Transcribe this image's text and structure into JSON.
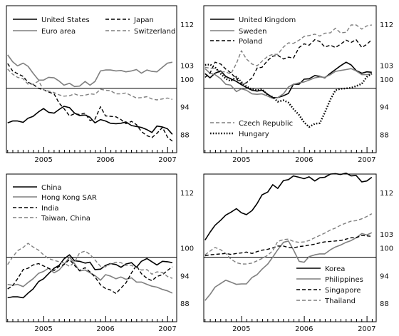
{
  "chart_data": [
    {
      "type": "line",
      "panel": "top-left",
      "title": "",
      "xlabel": "",
      "ylabel": "",
      "x_ticks": [
        "2005",
        "2006",
        "2007"
      ],
      "y_ticks": [
        88,
        94,
        100,
        103,
        112
      ],
      "ylim": [
        84,
        116
      ],
      "xlim": [
        2004.4,
        2007.15
      ],
      "reference_line": 98,
      "x": [
        2004.42,
        2004.5,
        2004.58,
        2004.67,
        2004.75,
        2004.83,
        2004.92,
        2005.0,
        2005.08,
        2005.17,
        2005.25,
        2005.33,
        2005.42,
        2005.5,
        2005.58,
        2005.67,
        2005.75,
        2005.83,
        2005.92,
        2006.0,
        2006.08,
        2006.17,
        2006.25,
        2006.33,
        2006.42,
        2006.5,
        2006.58,
        2006.67,
        2006.75,
        2006.83,
        2006.92,
        2007.0,
        2007.08
      ],
      "series": [
        {
          "name": "United States",
          "style": "solid",
          "color": "#000000",
          "width": 1.6,
          "values": [
            90.5,
            90.9,
            90.9,
            90.6,
            91.5,
            91.9,
            92.9,
            93.6,
            92.8,
            92.6,
            93.4,
            94.1,
            93.8,
            92.6,
            92.1,
            92.2,
            91.7,
            90.5,
            91.2,
            90.9,
            90.4,
            90.3,
            90.4,
            90.7,
            89.9,
            89.7,
            89.5,
            89.0,
            88.4,
            89.8,
            89.6,
            89.2,
            88.0
          ]
        },
        {
          "name": "Japan",
          "style": "dash",
          "color": "#000000",
          "width": 1.4,
          "values": [
            103.4,
            101.8,
            101.2,
            100.6,
            99.3,
            98.9,
            98.0,
            97.7,
            97.2,
            96.8,
            94.8,
            93.6,
            92.0,
            92.5,
            92.3,
            92.6,
            91.0,
            91.3,
            94.0,
            92.0,
            91.9,
            91.8,
            91.2,
            90.3,
            90.8,
            90.1,
            88.6,
            87.7,
            87.3,
            88.2,
            89.5,
            87.4,
            86.5
          ]
        },
        {
          "name": "Euro area",
          "style": "solid",
          "color": "#7f7f7f",
          "width": 1.6,
          "values": [
            105.3,
            103.8,
            102.9,
            103.5,
            102.8,
            101.3,
            99.8,
            99.8,
            100.4,
            100.3,
            99.6,
            98.7,
            99.1,
            98.4,
            98.5,
            99.5,
            98.7,
            99.5,
            101.8,
            102.0,
            102.0,
            101.8,
            101.9,
            101.6,
            101.8,
            102.1,
            101.3,
            102.0,
            101.7,
            101.6,
            102.6,
            103.5,
            103.7
          ]
        },
        {
          "name": "Switzerland",
          "style": "dash",
          "color": "#7f7f7f",
          "width": 1.4,
          "values": [
            102.2,
            101.1,
            100.4,
            100.1,
            98.9,
            98.9,
            99.6,
            97.7,
            97.4,
            97.1,
            96.6,
            96.3,
            96.4,
            96.8,
            96.4,
            96.5,
            96.8,
            96.7,
            97.8,
            97.6,
            97.5,
            96.8,
            96.8,
            97.0,
            96.4,
            95.9,
            96.0,
            96.2,
            95.7,
            95.5,
            95.7,
            95.9,
            95.6
          ]
        }
      ]
    },
    {
      "type": "line",
      "panel": "top-right",
      "title": "",
      "xlabel": "",
      "ylabel": "",
      "x_ticks": [
        "2005",
        "2006",
        "2007"
      ],
      "y_ticks": [
        88,
        94,
        100,
        103,
        112
      ],
      "ylim": [
        84,
        116
      ],
      "xlim": [
        2004.4,
        2007.15
      ],
      "reference_line": 98,
      "x": [
        2004.42,
        2004.5,
        2004.58,
        2004.67,
        2004.75,
        2004.83,
        2004.92,
        2005.0,
        2005.08,
        2005.17,
        2005.25,
        2005.33,
        2005.42,
        2005.5,
        2005.58,
        2005.67,
        2005.75,
        2005.83,
        2005.92,
        2006.0,
        2006.08,
        2006.17,
        2006.25,
        2006.33,
        2006.42,
        2006.5,
        2006.58,
        2006.67,
        2006.75,
        2006.83,
        2006.92,
        2007.0,
        2007.08
      ],
      "series": [
        {
          "name": "United Kingdom",
          "style": "solid",
          "color": "#000000",
          "width": 1.6,
          "values": [
            101.2,
            100.3,
            101.3,
            101.8,
            100.6,
            100.1,
            99.5,
            98.8,
            98.2,
            97.6,
            97.4,
            97.6,
            96.7,
            96.0,
            96.0,
            96.4,
            96.9,
            98.9,
            98.9,
            100.0,
            100.1,
            100.8,
            100.6,
            100.3,
            101.3,
            102.1,
            102.9,
            103.7,
            103.1,
            101.9,
            101.3,
            101.6,
            101.5
          ]
        },
        {
          "name": "Sweden",
          "style": "solid",
          "color": "#7f7f7f",
          "width": 1.6,
          "values": [
            102.3,
            101.3,
            101.0,
            100.1,
            98.9,
            98.7,
            97.3,
            97.9,
            97.6,
            96.8,
            96.7,
            96.8,
            96.3,
            95.8,
            96.0,
            96.8,
            98.3,
            98.9,
            99.2,
            99.4,
            99.8,
            100.3,
            100.5,
            100.4,
            101.0,
            101.7,
            101.9,
            102.1,
            102.3,
            101.8,
            101.0,
            101.0,
            101.2
          ]
        },
        {
          "name": "Poland",
          "style": "dash",
          "color": "#000000",
          "width": 1.4,
          "values": [
            100.4,
            101.3,
            103.7,
            103.3,
            102.2,
            101.4,
            100.1,
            98.9,
            99.2,
            100.3,
            102.4,
            102.6,
            104.1,
            105.0,
            105.2,
            104.4,
            104.8,
            104.6,
            106.9,
            107.7,
            107.4,
            108.6,
            108.2,
            107.0,
            107.4,
            106.9,
            107.6,
            108.5,
            108.0,
            108.6,
            106.9,
            107.6,
            108.6
          ]
        },
        {
          "name": "Czech Republic",
          "style": "dash",
          "color": "#7f7f7f",
          "width": 1.4,
          "values": [
            102.6,
            102.4,
            102.3,
            101.6,
            101.6,
            101.1,
            103.4,
            106.2,
            104.4,
            103.3,
            102.9,
            103.9,
            105.0,
            105.4,
            105.4,
            107.0,
            107.9,
            107.8,
            108.5,
            109.3,
            109.5,
            109.8,
            109.4,
            110.0,
            110.1,
            111.1,
            110.1,
            110.2,
            111.8,
            111.8,
            110.9,
            111.6,
            111.8
          ]
        },
        {
          "name": "Hungary",
          "style": "dot",
          "color": "#000000",
          "width": 2.4,
          "values": [
            103.1,
            103.2,
            102.6,
            101.2,
            100.1,
            99.6,
            100.5,
            99.4,
            98.4,
            97.8,
            97.6,
            97.8,
            96.6,
            96.1,
            95.1,
            95.4,
            94.9,
            93.5,
            92.2,
            90.6,
            89.6,
            90.3,
            90.4,
            92.7,
            95.6,
            97.6,
            97.9,
            98.0,
            98.1,
            98.5,
            99.0,
            100.5,
            101.2
          ]
        }
      ]
    },
    {
      "type": "line",
      "panel": "bottom-left",
      "title": "",
      "xlabel": "",
      "ylabel": "",
      "x_ticks": [
        "2005",
        "2006",
        "2007"
      ],
      "y_ticks": [
        88,
        94,
        100,
        112
      ],
      "ylim": [
        84,
        116
      ],
      "xlim": [
        2004.4,
        2007.15
      ],
      "reference_line": 98,
      "x": [
        2004.42,
        2004.5,
        2004.58,
        2004.67,
        2004.75,
        2004.83,
        2004.92,
        2005.0,
        2005.08,
        2005.17,
        2005.25,
        2005.33,
        2005.42,
        2005.5,
        2005.58,
        2005.67,
        2005.75,
        2005.83,
        2005.92,
        2006.0,
        2006.08,
        2006.17,
        2006.25,
        2006.33,
        2006.42,
        2006.5,
        2006.58,
        2006.67,
        2006.75,
        2006.83,
        2006.92,
        2007.0,
        2007.08
      ],
      "series": [
        {
          "name": "China",
          "style": "solid",
          "color": "#000000",
          "width": 1.6,
          "values": [
            89.2,
            89.4,
            89.4,
            89.2,
            90.2,
            91.1,
            92.7,
            93.3,
            94.4,
            95.6,
            96.2,
            97.6,
            98.5,
            97.2,
            97.1,
            96.7,
            96.9,
            95.3,
            95.4,
            96.2,
            96.6,
            96.4,
            95.8,
            96.5,
            96.8,
            95.8,
            97.1,
            97.7,
            97.0,
            96.3,
            97.1,
            97.0,
            96.8
          ]
        },
        {
          "name": "Hong Kong SAR",
          "style": "solid",
          "color": "#7f7f7f",
          "width": 1.6,
          "values": [
            92.1,
            91.9,
            92.1,
            91.6,
            92.5,
            93.3,
            94.5,
            94.9,
            95.6,
            94.6,
            95.2,
            96.4,
            98.0,
            96.6,
            95.0,
            95.2,
            94.6,
            94.0,
            93.0,
            94.2,
            93.9,
            93.3,
            93.7,
            93.2,
            93.5,
            92.6,
            92.6,
            92.1,
            91.7,
            91.5,
            91.0,
            90.7,
            90.2
          ]
        },
        {
          "name": "India",
          "style": "dash",
          "color": "#000000",
          "width": 1.4,
          "values": [
            91.1,
            91.8,
            93.3,
            95.3,
            95.6,
            96.3,
            96.6,
            96.1,
            95.6,
            95.1,
            96.0,
            96.4,
            97.5,
            96.2,
            95.1,
            95.7,
            94.8,
            93.7,
            92.0,
            91.2,
            90.9,
            90.1,
            91.3,
            92.4,
            94.6,
            96.2,
            94.4,
            93.4,
            92.9,
            93.8,
            94.2,
            95.1,
            95.9
          ]
        },
        {
          "name": "Taiwan, China",
          "style": "dash",
          "color": "#7f7f7f",
          "width": 1.4,
          "values": [
            96.4,
            98.0,
            99.4,
            100.1,
            101.0,
            100.2,
            99.5,
            98.5,
            97.7,
            97.3,
            97.0,
            96.7,
            96.0,
            96.9,
            98.9,
            99.3,
            98.6,
            97.4,
            96.0,
            95.9,
            96.5,
            96.9,
            96.8,
            96.2,
            96.2,
            95.7,
            95.2,
            95.3,
            94.3,
            94.8,
            94.7,
            93.8,
            93.4
          ]
        }
      ]
    },
    {
      "type": "line",
      "panel": "bottom-right",
      "title": "",
      "xlabel": "",
      "ylabel": "",
      "x_ticks": [
        "2005",
        "2006",
        "2007"
      ],
      "y_ticks": [
        88,
        94,
        100,
        103,
        112
      ],
      "ylim": [
        84,
        116
      ],
      "xlim": [
        2004.4,
        2007.15
      ],
      "reference_line": 98,
      "x": [
        2004.42,
        2004.5,
        2004.58,
        2004.67,
        2004.75,
        2004.83,
        2004.92,
        2005.0,
        2005.08,
        2005.17,
        2005.25,
        2005.33,
        2005.42,
        2005.5,
        2005.58,
        2005.67,
        2005.75,
        2005.83,
        2005.92,
        2006.0,
        2006.08,
        2006.17,
        2006.25,
        2006.33,
        2006.42,
        2006.5,
        2006.58,
        2006.67,
        2006.75,
        2006.83,
        2006.92,
        2007.0,
        2007.08
      ],
      "series": [
        {
          "name": "Korea",
          "style": "solid",
          "color": "#000000",
          "width": 1.6,
          "values": [
            101.7,
            103.4,
            104.9,
            106.0,
            107.1,
            107.7,
            108.5,
            107.6,
            107.2,
            108.1,
            109.6,
            111.5,
            112.1,
            113.7,
            112.9,
            114.6,
            114.8,
            115.6,
            115.3,
            115.0,
            115.4,
            114.5,
            115.2,
            115.3,
            116.0,
            116.1,
            115.9,
            116.2,
            115.6,
            115.7,
            114.3,
            114.5,
            115.3
          ]
        },
        {
          "name": "Philippines",
          "style": "solid",
          "color": "#7f7f7f",
          "width": 1.6,
          "values": [
            88.6,
            89.9,
            91.5,
            92.3,
            93.0,
            92.6,
            92.1,
            92.2,
            92.2,
            93.6,
            94.2,
            95.4,
            96.5,
            98.0,
            99.6,
            101.2,
            101.5,
            99.6,
            97.1,
            96.9,
            98.1,
            98.5,
            98.7,
            98.7,
            99.6,
            100.2,
            100.6,
            101.2,
            101.6,
            102.2,
            103.1,
            102.8,
            103.3
          ]
        },
        {
          "name": "Singapore",
          "style": "dash",
          "color": "#000000",
          "width": 1.4,
          "values": [
            98.3,
            98.5,
            98.6,
            98.7,
            98.8,
            98.6,
            98.8,
            98.9,
            99.1,
            98.8,
            99.2,
            99.5,
            99.7,
            100.0,
            100.4,
            100.4,
            100.1,
            100.0,
            100.3,
            100.4,
            100.6,
            100.8,
            101.1,
            101.3,
            101.4,
            101.5,
            101.6,
            101.9,
            102.2,
            102.2,
            102.7,
            102.6,
            102.5
          ]
        },
        {
          "name": "Thailand",
          "style": "dash",
          "color": "#7f7f7f",
          "width": 1.4,
          "values": [
            98.5,
            99.3,
            100.1,
            99.6,
            98.8,
            97.6,
            96.8,
            96.5,
            96.5,
            96.7,
            97.2,
            97.7,
            98.4,
            99.4,
            101.4,
            101.8,
            101.9,
            101.4,
            101.2,
            101.3,
            101.6,
            102.2,
            102.7,
            103.2,
            103.9,
            104.3,
            104.9,
            105.4,
            105.8,
            105.9,
            106.3,
            106.8,
            107.4
          ]
        }
      ]
    }
  ]
}
